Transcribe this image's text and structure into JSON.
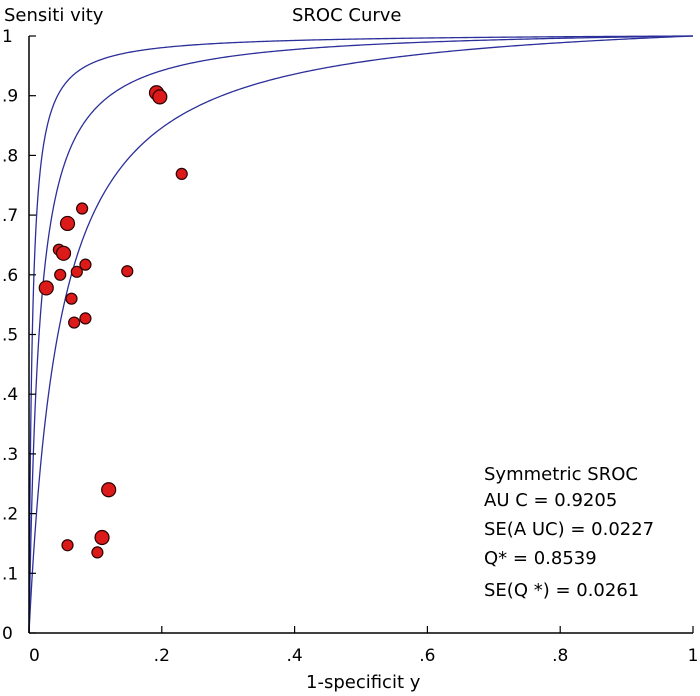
{
  "chart_data": {
    "type": "scatter",
    "title": "SROC Curve",
    "xlabel": "1-specificit y",
    "ylabel": "Sensiti vity",
    "xlim": [
      0,
      1
    ],
    "ylim": [
      0,
      1
    ],
    "x_ticks": [
      {
        "value": 0,
        "label": "0"
      },
      {
        "value": 0.2,
        "label": ".2"
      },
      {
        "value": 0.4,
        "label": ".4"
      },
      {
        "value": 0.6,
        "label": ".6"
      },
      {
        "value": 0.8,
        "label": ".8"
      },
      {
        "value": 1,
        "label": "1"
      }
    ],
    "y_ticks": [
      {
        "value": 0,
        "label": "0"
      },
      {
        "value": 0.1,
        "label": ".1"
      },
      {
        "value": 0.2,
        "label": ".2"
      },
      {
        "value": 0.3,
        "label": ".3"
      },
      {
        "value": 0.4,
        "label": ".4"
      },
      {
        "value": 0.5,
        "label": ".5"
      },
      {
        "value": 0.6,
        "label": ".6"
      },
      {
        "value": 0.7,
        "label": ".7"
      },
      {
        "value": 0.8,
        "label": ".8"
      },
      {
        "value": 0.9,
        "label": ".9"
      },
      {
        "value": 1,
        "label": "1"
      }
    ],
    "grid": false,
    "legend": "none",
    "point_color": "#dd1a1a",
    "point_edge_color": "#2a0000",
    "curve_color": "#2b2f9a",
    "curves": [
      {
        "diagnostic_odds_ratio": 200
      },
      {
        "diagnostic_odds_ratio": 65
      },
      {
        "diagnostic_odds_ratio": 22
      }
    ],
    "points": [
      {
        "x": 0.192,
        "y": 0.905,
        "size": "large"
      },
      {
        "x": 0.197,
        "y": 0.898,
        "size": "large"
      },
      {
        "x": 0.23,
        "y": 0.769,
        "size": "small"
      },
      {
        "x": 0.08,
        "y": 0.711,
        "size": "small"
      },
      {
        "x": 0.058,
        "y": 0.686,
        "size": "large"
      },
      {
        "x": 0.045,
        "y": 0.642,
        "size": "small"
      },
      {
        "x": 0.052,
        "y": 0.636,
        "size": "large"
      },
      {
        "x": 0.085,
        "y": 0.617,
        "size": "small"
      },
      {
        "x": 0.072,
        "y": 0.605,
        "size": "small"
      },
      {
        "x": 0.148,
        "y": 0.606,
        "size": "small"
      },
      {
        "x": 0.047,
        "y": 0.6,
        "size": "small"
      },
      {
        "x": 0.026,
        "y": 0.578,
        "size": "large"
      },
      {
        "x": 0.064,
        "y": 0.56,
        "size": "small"
      },
      {
        "x": 0.085,
        "y": 0.527,
        "size": "small"
      },
      {
        "x": 0.068,
        "y": 0.52,
        "size": "small"
      },
      {
        "x": 0.12,
        "y": 0.24,
        "size": "large"
      },
      {
        "x": 0.11,
        "y": 0.16,
        "size": "large"
      },
      {
        "x": 0.058,
        "y": 0.147,
        "size": "small"
      },
      {
        "x": 0.103,
        "y": 0.135,
        "size": "small"
      }
    ],
    "annotations": [
      "Symmetric SROC",
      "AU C = 0.9205",
      "SE(A UC)  = 0.0227",
      "Q* = 0.8539",
      "SE(Q *) = 0.0261"
    ]
  }
}
